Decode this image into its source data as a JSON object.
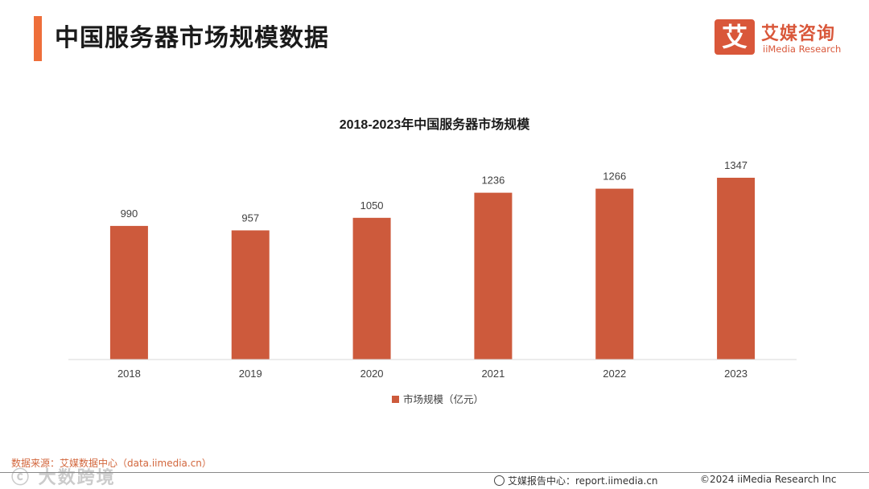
{
  "header": {
    "page_title": "中国服务器市场规模数据"
  },
  "logo": {
    "mark": "艾",
    "name_cn": "艾媒咨询",
    "name_en": "iiMedia Research"
  },
  "chart_data": {
    "type": "bar",
    "title": "2018-2023年中国服务器市场规模",
    "categories": [
      "2018",
      "2019",
      "2020",
      "2021",
      "2022",
      "2023"
    ],
    "series": [
      {
        "name": "市场规模（亿元）",
        "values": [
          990,
          957,
          1050,
          1236,
          1266,
          1347
        ]
      }
    ],
    "xlabel": "",
    "ylabel": "",
    "ylim": [
      0,
      1600
    ],
    "grid": false,
    "legend": "bottom",
    "data_labels": true,
    "colors": {
      "bar": "#cd5a3c",
      "axis": "#d9d9d9"
    }
  },
  "footer": {
    "source": "数据来源：艾媒数据中心（data.iimedia.cn）",
    "watermark": "ⓒ 大数跨境",
    "report_center": "艾媒报告中心：report.iimedia.cn",
    "copyright": "©2024  iiMedia Research  Inc"
  }
}
